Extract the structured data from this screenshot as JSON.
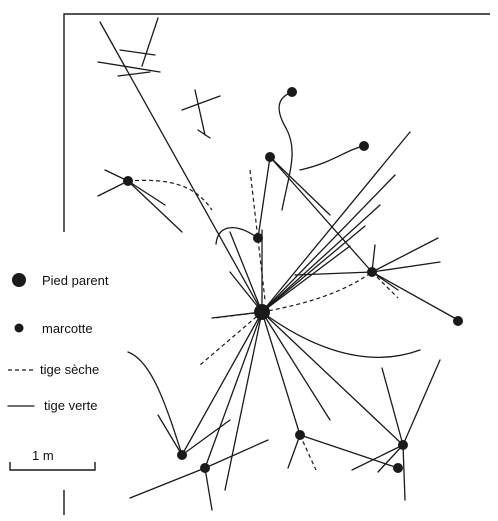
{
  "legend": {
    "parent_label": "Pied parent",
    "layer_label": "marcotte",
    "dry_label": "tige sèche",
    "green_label": "tige verte",
    "scale_label": "1 m"
  },
  "colors": {
    "ink": "#1a1a1a",
    "background": "#ffffff"
  }
}
